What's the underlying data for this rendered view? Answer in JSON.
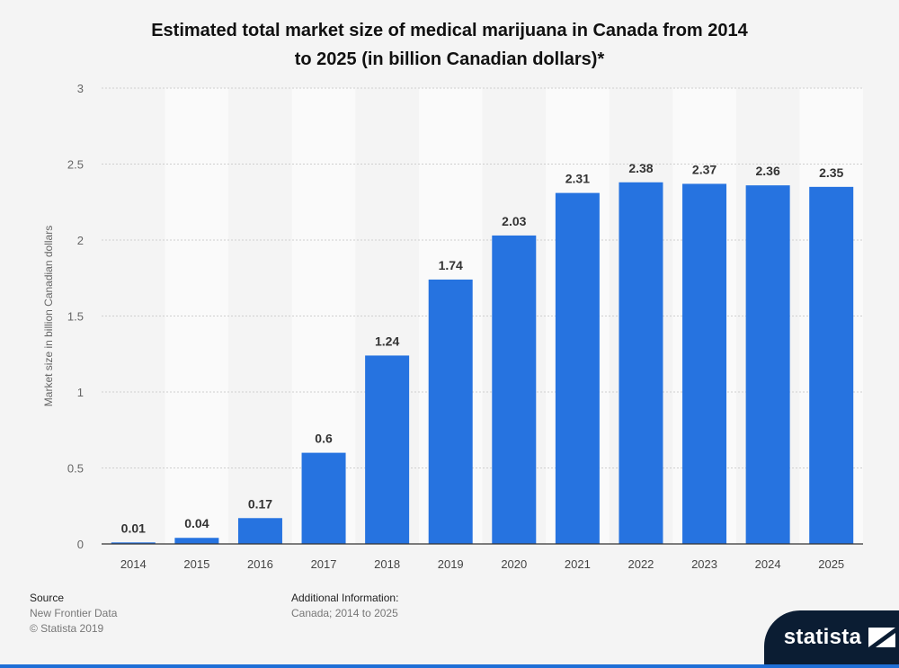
{
  "chart_data": {
    "type": "bar",
    "title_lines": [
      "Estimated total market size of medical marijuana in Canada from 2014",
      "to 2025 (in billion Canadian dollars)*"
    ],
    "xlabel": "",
    "ylabel": "Market size in billion Canadian dollars",
    "categories": [
      "2014",
      "2015",
      "2016",
      "2017",
      "2018",
      "2019",
      "2020",
      "2021",
      "2022",
      "2023",
      "2024",
      "2025"
    ],
    "values": [
      0.01,
      0.04,
      0.17,
      0.6,
      1.24,
      1.74,
      2.03,
      2.31,
      2.38,
      2.37,
      2.36,
      2.35
    ],
    "value_labels": [
      "0.01",
      "0.04",
      "0.17",
      "0.6",
      "1.24",
      "1.74",
      "2.03",
      "2.31",
      "2.38",
      "2.37",
      "2.36",
      "2.35"
    ],
    "ylim": [
      0,
      3
    ],
    "yticks": [
      "0",
      "0.5",
      "1",
      "1.5",
      "2",
      "2.5",
      "3"
    ],
    "ytick_values": [
      0,
      0.5,
      1,
      1.5,
      2,
      2.5,
      3
    ],
    "grid": true,
    "legend": "none",
    "bar_color": "#2673e0"
  },
  "footer": {
    "source_title": "Source",
    "source_lines": [
      "New Frontier Data",
      "© Statista 2019"
    ],
    "additional_title": "Additional Information:",
    "additional_text": "Canada; 2014 to 2025"
  },
  "logo": {
    "text": "statista"
  },
  "colors": {
    "background": "#f4f4f4",
    "band": "#fafafa",
    "grid": "#cfcfcf",
    "axis": "#333333",
    "bar": "#2673e0",
    "logo_bg": "#0b1d33"
  }
}
